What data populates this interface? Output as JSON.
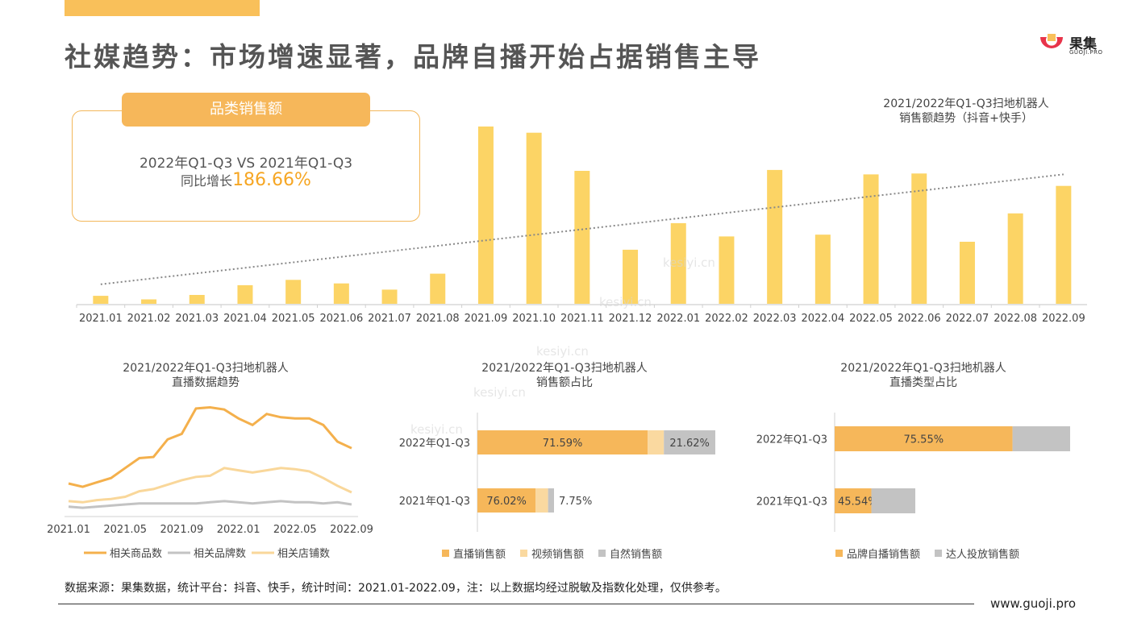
{
  "header": {
    "title": "社媒趋势：市场增速显著，品牌自播开始占据销售主导",
    "brand_name": "果集",
    "brand_sub": "GUOJI.PRO"
  },
  "kpi": {
    "tag": "品类销售额",
    "line1": "2022年Q1-Q3 VS 2021年Q1-Q3",
    "line2_prefix": "同比增长",
    "line2_value": "186.66%"
  },
  "watermark_text": "kesiyi.cn",
  "colors": {
    "accent": "#F9C05A",
    "orange": "#F6B75A",
    "gray": "#C3C3C3",
    "light": "#F9D79A"
  },
  "chart_data": [
    {
      "type": "bar",
      "title": "2021/2022年Q1-Q3扫地机器人\n销售额趋势（抖音+快手）",
      "categories": [
        "2021.01",
        "2021.02",
        "2021.03",
        "2021.04",
        "2021.05",
        "2021.06",
        "2021.07",
        "2021.08",
        "2021.09",
        "2021.10",
        "2021.11",
        "2021.12",
        "2022.01",
        "2022.02",
        "2022.03",
        "2022.04",
        "2022.05",
        "2022.06",
        "2022.07",
        "2022.08",
        "2022.09"
      ],
      "values": [
        4.5,
        2.5,
        5,
        10.5,
        13.5,
        11.5,
        8,
        17,
        100,
        96.5,
        75,
        30.5,
        45.5,
        38,
        75.5,
        39,
        73,
        73.5,
        35,
        51,
        66.5
      ],
      "trendline": {
        "style": "dotted",
        "from": 11,
        "to": 73
      },
      "ylim": [
        0,
        100
      ],
      "grid": false
    },
    {
      "type": "line",
      "title": "2021/2022年Q1-Q3扫地机器人\n直播数据趋势",
      "x_ticks": [
        "2021.01",
        "2021.05",
        "2021.09",
        "2022.01",
        "2022.05",
        "2022.09"
      ],
      "x": [
        "2021.01",
        "2021.02",
        "2021.03",
        "2021.04",
        "2021.05",
        "2021.06",
        "2021.07",
        "2021.08",
        "2021.09",
        "2021.10",
        "2021.11",
        "2021.12",
        "2022.01",
        "2022.02",
        "2022.03",
        "2022.04",
        "2022.05",
        "2022.06",
        "2022.07",
        "2022.08",
        "2022.09"
      ],
      "series": [
        {
          "name": "相关商品数",
          "color": "#F4B04C",
          "values": [
            27,
            24,
            28,
            32,
            41,
            50,
            51,
            67,
            72,
            95,
            96,
            94,
            86,
            80,
            90,
            87,
            86,
            86,
            80,
            65,
            59
          ]
        },
        {
          "name": "相关品牌数",
          "color": "#C3C3C3",
          "values": [
            6,
            5,
            6,
            7,
            8,
            9,
            9,
            9,
            9,
            9,
            10,
            11,
            10,
            9,
            10,
            11,
            10,
            10,
            9,
            10,
            8
          ]
        },
        {
          "name": "相关店铺数",
          "color": "#F9D79A",
          "values": [
            11,
            10,
            12,
            13,
            15,
            20,
            22,
            26,
            30,
            33,
            34,
            41,
            39,
            37,
            39,
            41,
            40,
            38,
            32,
            25,
            19
          ]
        }
      ],
      "ylim": [
        0,
        100
      ],
      "legend": "bottom"
    },
    {
      "type": "bar",
      "orientation": "horizontal-stacked",
      "title": "2021/2022年Q1-Q3扫地机器人\n销售额占比",
      "categories": [
        "2022年Q1-Q3",
        "2021年Q1-Q3"
      ],
      "series": [
        {
          "name": "直播销售额",
          "color": "#F6B75A",
          "values": [
            71.59,
            76.02
          ]
        },
        {
          "name": "视频销售额",
          "color": "#FAD9A0",
          "values": [
            6.79,
            16.23
          ]
        },
        {
          "name": "自然销售额",
          "color": "#C3C3C3",
          "values": [
            21.62,
            7.75
          ]
        }
      ],
      "data_labels": [
        [
          "71.59%",
          "",
          "21.62%"
        ],
        [
          "76.02%",
          "",
          "7.75%"
        ]
      ],
      "legend": "bottom"
    },
    {
      "type": "bar",
      "orientation": "horizontal-stacked",
      "title": "2021/2022年Q1-Q3扫地机器人\n直播类型占比",
      "categories": [
        "2022年Q1-Q3",
        "2021年Q1-Q3"
      ],
      "series": [
        {
          "name": "品牌自播销售额",
          "color": "#F6B75A",
          "values": [
            75.55,
            45.54
          ]
        },
        {
          "name": "达人投放销售额",
          "color": "#C3C3C3",
          "values": [
            24.45,
            54.46
          ]
        }
      ],
      "data_labels": [
        [
          "75.55%",
          ""
        ],
        [
          "45.54%",
          ""
        ]
      ],
      "legend": "bottom"
    }
  ],
  "footer": {
    "note": "数据来源：果集数据，统计平台：抖音、快手，统计时间：2021.01-2022.09，注：以上数据均经过脱敏及指数化处理，仅供参考。",
    "url": "www.guoji.pro"
  }
}
